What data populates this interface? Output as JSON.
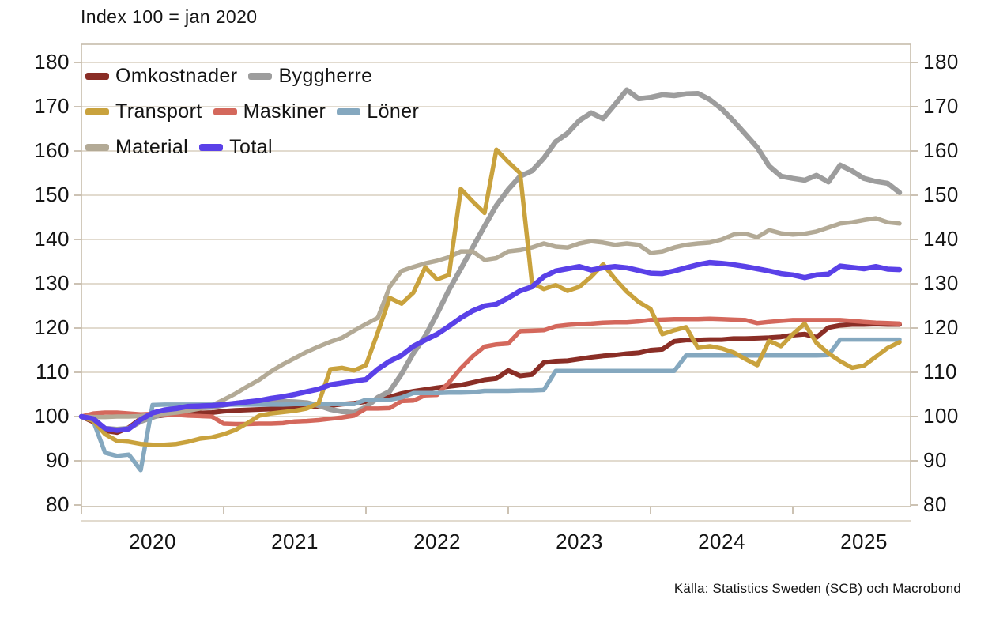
{
  "title": "Index 100 = jan 2020",
  "source": "Källa: Statistics Sweden (SCB)  och Macrobond",
  "colors": {
    "background": "#ffffff",
    "gridline": "#d8cfbf",
    "frame": "#c6bcab",
    "text": "#141414",
    "omkostnader": "#8a2e26",
    "byggherre": "#9d9d9d",
    "transport": "#c9a23d",
    "maskiner": "#d4685c",
    "loner": "#85a8bf",
    "material": "#b3aa96",
    "total": "#5a41e8"
  },
  "legend": {
    "rows": [
      [
        {
          "key": "omkostnader",
          "label": "Omkostnader"
        },
        {
          "key": "byggherre",
          "label": "Byggherre"
        }
      ],
      [
        {
          "key": "transport",
          "label": "Transport"
        },
        {
          "key": "maskiner",
          "label": "Maskiner"
        },
        {
          "key": "loner",
          "label": "Löner"
        }
      ],
      [
        {
          "key": "material",
          "label": "Material"
        },
        {
          "key": "total",
          "label": "Total"
        }
      ]
    ]
  },
  "axes": {
    "y_ticks": [
      80,
      90,
      100,
      110,
      120,
      130,
      140,
      150,
      160,
      170,
      180
    ],
    "y_axis_sides": [
      "left",
      "right"
    ],
    "x_labels": [
      "2020",
      "2021",
      "2022",
      "2023",
      "2024",
      "2025"
    ]
  },
  "chart_data": {
    "type": "line",
    "title": "Index 100 = jan 2020",
    "x_interval": "month",
    "x_start": "2020-01",
    "x_end": "2025-10",
    "ylim": [
      80,
      180
    ],
    "grid": true,
    "legend_position": "top-left",
    "draw_order": [
      "omkostnader",
      "byggherre",
      "maskiner",
      "material",
      "loner",
      "transport",
      "total"
    ],
    "series": [
      {
        "key": "omkostnader",
        "name": "Omkostnader",
        "color": "#8a2e26",
        "width": 6,
        "values": [
          100,
          98.8,
          96.8,
          96.4,
          97.5,
          99.5,
          100,
          100.3,
          100.5,
          100.7,
          100.8,
          100.9,
          101.2,
          101.4,
          101.5,
          101.6,
          101.7,
          101.8,
          102,
          102.1,
          102.3,
          102.5,
          102.8,
          103,
          103.4,
          103.8,
          104.4,
          105.2,
          105.7,
          106.1,
          106.5,
          106.8,
          107.1,
          107.7,
          108.3,
          108.6,
          110.4,
          109.2,
          109.5,
          112.2,
          112.5,
          112.6,
          113,
          113.4,
          113.7,
          113.9,
          114.2,
          114.4,
          115,
          115.2,
          117,
          117.3,
          117.3,
          117.4,
          117.4,
          117.6,
          117.6,
          117.7,
          117.8,
          118,
          118.4,
          118.6,
          117.9,
          120.1,
          120.6,
          120.8,
          120.8,
          120.9,
          120.8,
          120.8
        ]
      },
      {
        "key": "byggherre",
        "name": "Byggherre",
        "color": "#9d9d9d",
        "width": 6.5,
        "values": [
          100,
          99.2,
          97.3,
          97.1,
          97.3,
          98.9,
          99.8,
          100.7,
          101.4,
          101.8,
          102,
          102.1,
          102.6,
          103,
          103.3,
          103.4,
          103.5,
          103.4,
          103.3,
          103.1,
          102.5,
          101.6,
          101.1,
          100.9,
          102.1,
          104.3,
          105.7,
          109.6,
          114.3,
          118.2,
          123.2,
          128.6,
          133.4,
          138.2,
          143,
          147.7,
          151.3,
          154.3,
          155.5,
          158.4,
          162.1,
          164,
          166.9,
          168.6,
          167.3,
          170.5,
          173.8,
          171.8,
          172.1,
          172.7,
          172.5,
          172.9,
          173,
          171.6,
          169.5,
          166.8,
          163.8,
          160.8,
          156.6,
          154.3,
          153.8,
          153.4,
          154.5,
          153,
          156.8,
          155.5,
          153.8,
          153.1,
          152.7,
          150.6
        ]
      },
      {
        "key": "transport",
        "name": "Transport",
        "color": "#c9a23d",
        "width": 5.5,
        "values": [
          100,
          99,
          96,
          94.5,
          94.3,
          93.8,
          93.6,
          93.6,
          93.8,
          94.3,
          95,
          95.3,
          96,
          97,
          98.5,
          100.2,
          100.7,
          101,
          101.3,
          101.8,
          103,
          110.7,
          111,
          110.4,
          111.6,
          119,
          126.8,
          125.5,
          128,
          133.7,
          131,
          132,
          151.4,
          148.6,
          146,
          160.3,
          157.5,
          155,
          130.2,
          128.8,
          129.7,
          128.4,
          129.3,
          131.6,
          134.4,
          131.1,
          128.2,
          125.9,
          124.3,
          118.6,
          119.5,
          120.2,
          115.5,
          115.9,
          115.4,
          114.5,
          113,
          111.6,
          117.1,
          115.9,
          118.6,
          121,
          116.6,
          114.3,
          112.5,
          111,
          111.5,
          113.5,
          115.5,
          116.8
        ]
      },
      {
        "key": "maskiner",
        "name": "Maskiner",
        "color": "#d4685c",
        "width": 5.5,
        "values": [
          100,
          100.7,
          100.9,
          100.9,
          100.7,
          100.5,
          100.6,
          100.5,
          100.4,
          100.2,
          100.1,
          100,
          98.4,
          98.3,
          98.3,
          98.4,
          98.4,
          98.5,
          98.9,
          99,
          99.2,
          99.5,
          99.8,
          100.2,
          101.8,
          101.8,
          101.9,
          103.5,
          103.6,
          104.8,
          104.9,
          107.7,
          110.9,
          113.6,
          115.8,
          116.3,
          116.5,
          119.3,
          119.4,
          119.5,
          120.4,
          120.7,
          120.9,
          121,
          121.2,
          121.3,
          121.3,
          121.5,
          121.8,
          121.9,
          122,
          122,
          122,
          122.1,
          122,
          121.9,
          121.8,
          121.1,
          121.4,
          121.6,
          121.8,
          121.8,
          121.8,
          121.8,
          121.8,
          121.6,
          121.4,
          121.2,
          121.1,
          121
        ]
      },
      {
        "key": "loner",
        "name": "Löner",
        "color": "#85a8bf",
        "width": 5.5,
        "values": [
          100,
          99,
          91.8,
          91.1,
          91.4,
          87.9,
          102.6,
          102.7,
          102.7,
          102.7,
          102.7,
          102.7,
          102.7,
          102.7,
          102.7,
          102.7,
          102.7,
          102.7,
          102.8,
          102.8,
          102.8,
          102.8,
          102.8,
          102.8,
          103.8,
          103.8,
          103.8,
          104.3,
          105.3,
          105.3,
          105.3,
          105.4,
          105.4,
          105.5,
          105.8,
          105.8,
          105.8,
          105.9,
          105.9,
          106,
          110.3,
          110.3,
          110.3,
          110.3,
          110.3,
          110.3,
          110.3,
          110.3,
          110.3,
          110.3,
          110.3,
          113.8,
          113.8,
          113.8,
          113.8,
          113.8,
          113.8,
          113.8,
          113.8,
          113.8,
          113.8,
          113.8,
          113.8,
          113.9,
          117.4,
          117.4,
          117.4,
          117.4,
          117.4,
          117.4
        ]
      },
      {
        "key": "material",
        "name": "Material",
        "color": "#b3aa96",
        "width": 5.5,
        "values": [
          100,
          99.9,
          99.9,
          100,
          100,
          100.1,
          100.4,
          100.6,
          100.9,
          101.3,
          101.8,
          102.5,
          103.8,
          105.2,
          106.8,
          108.3,
          110.2,
          111.8,
          113.2,
          114.6,
          115.8,
          116.9,
          117.8,
          119.4,
          120.9,
          122.3,
          129.3,
          132.9,
          133.8,
          134.6,
          135.2,
          136,
          137.3,
          137.3,
          135.4,
          135.8,
          137.3,
          137.6,
          138.2,
          139.1,
          138.4,
          138.2,
          139.1,
          139.6,
          139.3,
          138.8,
          139.1,
          138.8,
          137,
          137.3,
          138.2,
          138.8,
          139.1,
          139.3,
          140,
          141.1,
          141.3,
          140.5,
          142.1,
          141.4,
          141.1,
          141.3,
          141.8,
          142.7,
          143.6,
          143.9,
          144.4,
          144.8,
          143.9,
          143.6
        ]
      },
      {
        "key": "total",
        "name": "Total",
        "color": "#5a41e8",
        "width": 6.5,
        "values": [
          100,
          99.5,
          97.3,
          96.9,
          97.2,
          99.3,
          100.8,
          101.5,
          101.8,
          102.3,
          102.4,
          102.5,
          102.7,
          103,
          103.3,
          103.6,
          104.1,
          104.5,
          105,
          105.6,
          106.2,
          107.2,
          107.6,
          108,
          108.4,
          110.7,
          112.5,
          113.8,
          115.9,
          117.3,
          118.6,
          120.4,
          122.3,
          123.9,
          125,
          125.4,
          126.8,
          128.4,
          129.3,
          131.6,
          132.9,
          133.4,
          133.9,
          133.1,
          133.6,
          133.9,
          133.6,
          133,
          132.4,
          132.3,
          132.9,
          133.6,
          134.3,
          134.8,
          134.6,
          134.3,
          133.9,
          133.4,
          132.9,
          132.3,
          132,
          131.4,
          132,
          132.2,
          134,
          133.7,
          133.4,
          133.9,
          133.3,
          133.2
        ]
      }
    ]
  }
}
